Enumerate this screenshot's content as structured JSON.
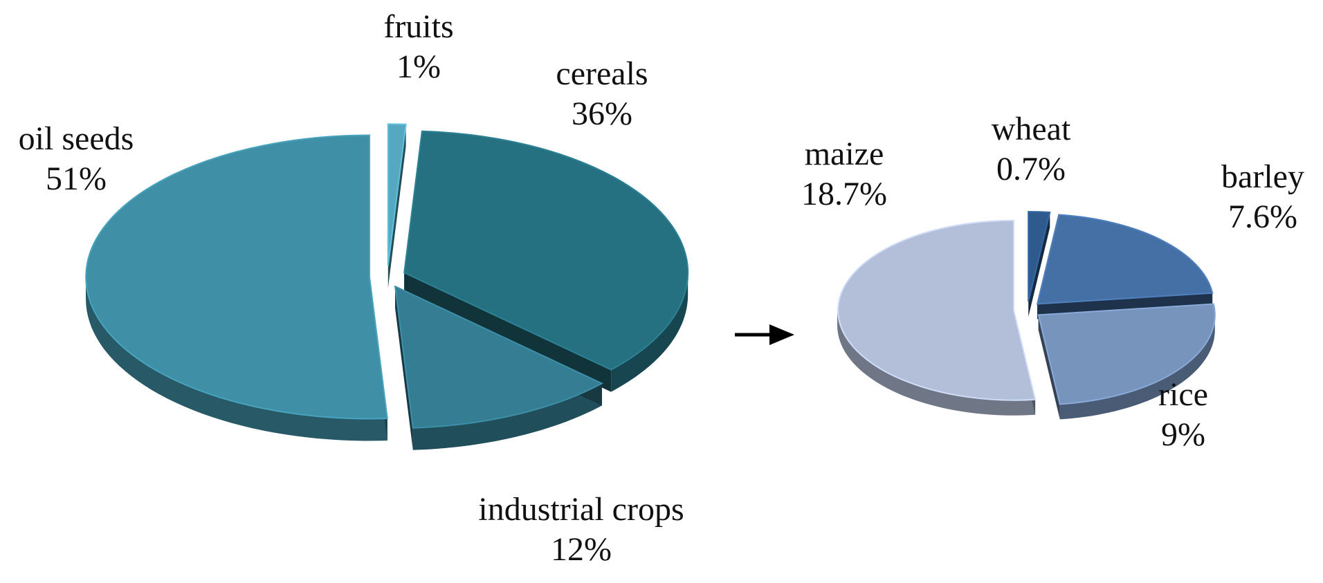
{
  "chart_data": [
    {
      "type": "pie",
      "title": "",
      "slices": [
        {
          "label": "oil seeds",
          "value": 51,
          "display": "51%",
          "color": "#3f8fa6"
        },
        {
          "label": "fruits",
          "value": 1,
          "display": "1%",
          "color": "#55a8c0"
        },
        {
          "label": "cereals",
          "value": 36,
          "display": "36%",
          "color": "#267181"
        },
        {
          "label": "industrial crops",
          "value": 12,
          "display": "12%",
          "color": "#357d93"
        }
      ]
    },
    {
      "type": "pie",
      "title": "",
      "slices": [
        {
          "label": "maize",
          "value": 18.7,
          "display": "18.7%",
          "color": "#b3bfd8"
        },
        {
          "label": "wheat",
          "value": 0.7,
          "display": "0.7%",
          "color": "#2e5a8e"
        },
        {
          "label": "barley",
          "value": 7.6,
          "display": "7.6%",
          "color": "#4570a6"
        },
        {
          "label": "rice",
          "value": 9,
          "display": "9%",
          "color": "#7794bd"
        }
      ]
    }
  ],
  "arrow": {
    "glyph": "→"
  }
}
